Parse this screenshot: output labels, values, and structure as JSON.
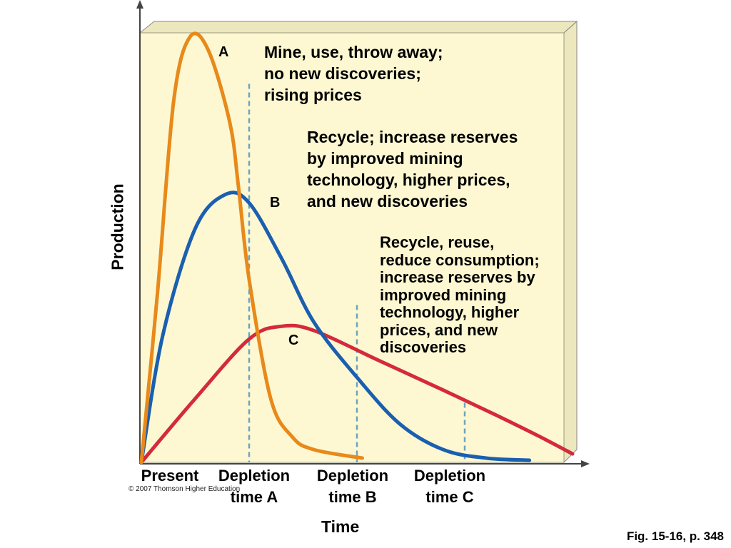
{
  "chart_data": {
    "type": "line",
    "title": "",
    "xlabel": "Time",
    "ylabel": "Production",
    "x_ticks": [
      {
        "label": "Present",
        "x": 0
      },
      {
        "label": "Depletion\ntime A",
        "x": 1
      },
      {
        "label": "Depletion\ntime B",
        "x": 2
      },
      {
        "label": "Depletion\ntime C",
        "x": 3
      }
    ],
    "xlim": [
      0,
      4.15
    ],
    "ylim": [
      0,
      100
    ],
    "grid": false,
    "series": [
      {
        "name": "A",
        "color": "#e8891a",
        "points": [
          [
            0,
            0
          ],
          [
            0.15,
            40
          ],
          [
            0.3,
            85
          ],
          [
            0.45,
            100
          ],
          [
            0.62,
            97
          ],
          [
            0.82,
            80
          ],
          [
            0.9,
            65
          ],
          [
            1.0,
            43
          ],
          [
            1.2,
            15
          ],
          [
            1.4,
            6
          ],
          [
            1.6,
            3
          ],
          [
            2.05,
            1
          ]
        ],
        "annotation": "Mine, use, throw away;\nno new discoveries;\nrising prices"
      },
      {
        "name": "B",
        "color": "#1a5fb0",
        "points": [
          [
            0,
            0
          ],
          [
            0.2,
            30
          ],
          [
            0.5,
            55
          ],
          [
            0.78,
            63
          ],
          [
            1.0,
            61
          ],
          [
            1.3,
            48
          ],
          [
            1.6,
            33
          ],
          [
            2.0,
            20
          ],
          [
            2.4,
            9
          ],
          [
            2.8,
            3
          ],
          [
            3.2,
            1
          ],
          [
            3.6,
            0.5
          ]
        ],
        "annotation": "Recycle; increase reserves\nby improved mining\ntechnology, higher prices,\nand new discoveries"
      },
      {
        "name": "C",
        "color": "#d42a3a",
        "points": [
          [
            0,
            0
          ],
          [
            0.5,
            15
          ],
          [
            1.0,
            29
          ],
          [
            1.3,
            32
          ],
          [
            1.6,
            31
          ],
          [
            2.2,
            24
          ],
          [
            2.8,
            17
          ],
          [
            3.3,
            11
          ],
          [
            3.7,
            6
          ],
          [
            4.0,
            2
          ]
        ],
        "annotation": "Recycle, reuse,\nreduce consumption;\nincrease reserves by\nimproved mining\ntechnology, higher\nprices, and new\ndiscoveries"
      }
    ],
    "depletion_markers": [
      {
        "x": 1,
        "y_top": 89
      },
      {
        "x": 2,
        "y_top": 37
      },
      {
        "x": 3,
        "y_top": 14
      }
    ]
  },
  "credits": {
    "copyright": "© 2007 Thomson Higher Education",
    "figure_ref": "Fig. 15-16, p. 348"
  },
  "colors": {
    "panel_fill": "#fdf8d2",
    "panel_side": "#ece7bc",
    "marker_line": "#6fa3bf",
    "axis": "#444444"
  }
}
